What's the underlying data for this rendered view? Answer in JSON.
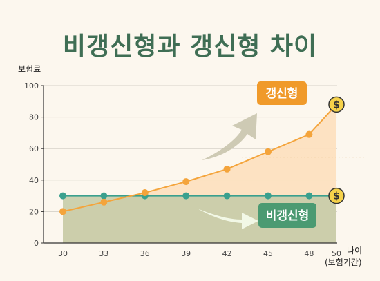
{
  "title": "비갱신형과 갱신형 차이",
  "chart_data": {
    "type": "line",
    "title": "비갱신형과 갱신형 차이",
    "ylabel": "보험료",
    "xlabel": "나이",
    "xlabel_sub": "(보험기간)",
    "x": [
      30,
      33,
      36,
      39,
      42,
      45,
      48,
      50
    ],
    "ylim": [
      0,
      100
    ],
    "yticks": [
      0,
      20,
      40,
      60,
      80,
      100
    ],
    "grid": true,
    "series": [
      {
        "name": "갱신형",
        "values": [
          20,
          26,
          32,
          39,
          47,
          58,
          69,
          88
        ],
        "color": "#f4a43b"
      },
      {
        "name": "비갱신형",
        "values": [
          30,
          30,
          30,
          30,
          30,
          30,
          30,
          30
        ],
        "color": "#3aa08e"
      }
    ],
    "annotations": [
      {
        "series": "갱신형",
        "badge": "갱신형",
        "badge_color": "#f09a2a",
        "coin": "$"
      },
      {
        "series": "비갱신형",
        "badge": "비갱신형",
        "badge_color": "#4b9a72",
        "coin": "$"
      }
    ]
  }
}
